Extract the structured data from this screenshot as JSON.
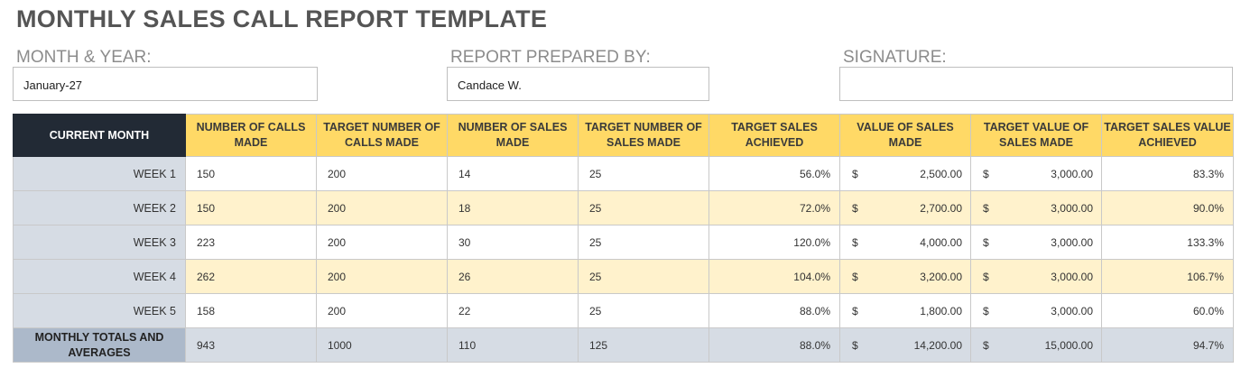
{
  "title": "MONTHLY SALES CALL REPORT TEMPLATE",
  "fields": {
    "month_year_label": "MONTH & YEAR:",
    "month_year_value": "January-27",
    "prepared_by_label": "REPORT PREPARED BY:",
    "prepared_by_value": "Candace W.",
    "signature_label": "SIGNATURE:",
    "signature_value": ""
  },
  "table": {
    "headers": [
      "CURRENT MONTH",
      "NUMBER OF CALLS MADE",
      "TARGET NUMBER OF CALLS MADE",
      "NUMBER OF SALES MADE",
      "TARGET NUMBER OF SALES MADE",
      "TARGET SALES ACHIEVED",
      "VALUE OF SALES MADE",
      "TARGET VALUE OF SALES MADE",
      "TARGET SALES VALUE ACHIEVED"
    ],
    "currency_symbol": "$",
    "rows": [
      {
        "label": "WEEK 1",
        "calls": "150",
        "target_calls": "200",
        "sales": "14",
        "target_sales": "25",
        "sales_achieved": "56.0%",
        "value": "2,500.00",
        "target_value": "3,000.00",
        "value_achieved": "83.3%"
      },
      {
        "label": "WEEK 2",
        "calls": "150",
        "target_calls": "200",
        "sales": "18",
        "target_sales": "25",
        "sales_achieved": "72.0%",
        "value": "2,700.00",
        "target_value": "3,000.00",
        "value_achieved": "90.0%"
      },
      {
        "label": "WEEK 3",
        "calls": "223",
        "target_calls": "200",
        "sales": "30",
        "target_sales": "25",
        "sales_achieved": "120.0%",
        "value": "4,000.00",
        "target_value": "3,000.00",
        "value_achieved": "133.3%"
      },
      {
        "label": "WEEK 4",
        "calls": "262",
        "target_calls": "200",
        "sales": "26",
        "target_sales": "25",
        "sales_achieved": "104.0%",
        "value": "3,200.00",
        "target_value": "3,000.00",
        "value_achieved": "106.7%"
      },
      {
        "label": "WEEK 5",
        "calls": "158",
        "target_calls": "200",
        "sales": "22",
        "target_sales": "25",
        "sales_achieved": "88.0%",
        "value": "1,800.00",
        "target_value": "3,000.00",
        "value_achieved": "60.0%"
      }
    ],
    "totals": {
      "label": "MONTHLY TOTALS AND AVERAGES",
      "calls": "943",
      "target_calls": "1000",
      "sales": "110",
      "target_sales": "125",
      "sales_achieved": "88.0%",
      "value": "14,200.00",
      "target_value": "15,000.00",
      "value_achieved": "94.7%"
    }
  },
  "colors": {
    "header_yellow": "#ffd966",
    "header_dark": "#222a35",
    "row_alt": "#fff2cc",
    "label_gray": "#d6dce4",
    "totals_label": "#acb9ca"
  }
}
